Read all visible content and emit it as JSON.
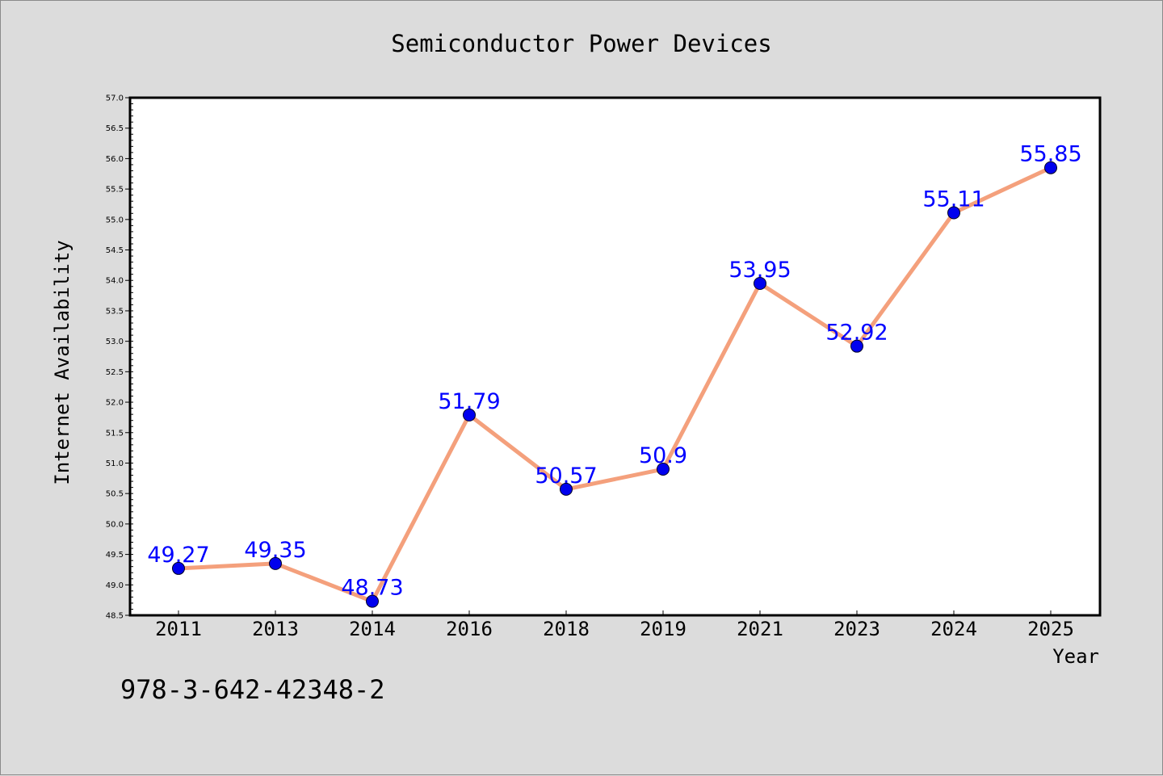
{
  "chart_data": {
    "type": "line",
    "title": "Semiconductor Power Devices",
    "xlabel": "Year",
    "ylabel": "Internet Availability",
    "categories": [
      "2011",
      "2013",
      "2014",
      "2016",
      "2018",
      "2019",
      "2021",
      "2023",
      "2024",
      "2025"
    ],
    "series": [
      {
        "values": [
          49.27,
          49.35,
          48.73,
          51.79,
          50.57,
          50.9,
          53.95,
          52.92,
          55.11,
          55.85
        ],
        "data_labels": [
          "49.27",
          "49.35",
          "48.73",
          "51.79",
          "50.57",
          "50.9",
          "53.95",
          "52.92",
          "55.11",
          "55.85"
        ]
      }
    ],
    "ylim": [
      48.5,
      57.0
    ],
    "yticks": [
      "48.5",
      "49.0",
      "49.5",
      "50.0",
      "50.5",
      "51.0",
      "51.5",
      "52.0",
      "52.5",
      "53.0",
      "53.5",
      "54.0",
      "54.5",
      "55.0",
      "55.5",
      "56.0",
      "56.5",
      "57.0"
    ],
    "grid": false,
    "colors": {
      "line": "#f4a07c",
      "marker": "#0000ee",
      "data_label": "#0000ff",
      "background": "#dcdcdc",
      "plot_area": "#ffffff"
    }
  },
  "annotation": "978-3-642-42348-2"
}
